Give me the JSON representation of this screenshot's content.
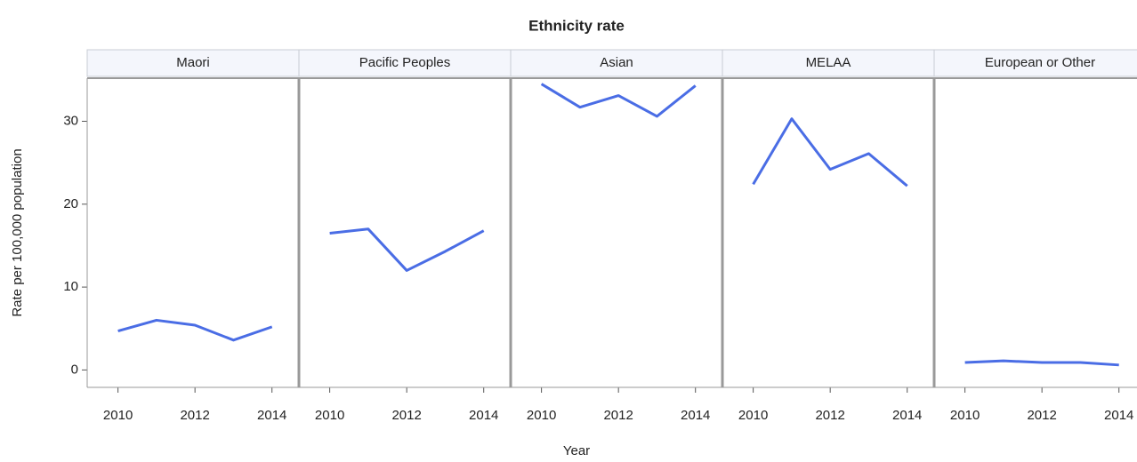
{
  "chart_data": {
    "type": "line",
    "title": "Ethnicity rate",
    "x_label": "Year",
    "y_label": "Rate per 100,000 population",
    "x": [
      2010,
      2011,
      2012,
      2013,
      2014
    ],
    "xlim": [
      2009.2,
      2014.7
    ],
    "xticks": [
      2010,
      2012,
      2014
    ],
    "ylim": [
      -2.1,
      35.2
    ],
    "yticks": [
      0,
      10,
      20,
      30
    ],
    "series": [
      {
        "name": "Maori",
        "color": "#4a6de5",
        "values": [
          4.7,
          6.0,
          5.4,
          3.6,
          5.2
        ]
      },
      {
        "name": "Pacific Peoples",
        "color": "#4a6de5",
        "values": [
          16.5,
          17.0,
          12.0,
          14.3,
          16.8
        ]
      },
      {
        "name": "Asian",
        "color": "#4a6de5",
        "values": [
          34.5,
          31.7,
          33.1,
          30.6,
          34.3
        ]
      },
      {
        "name": "MELAA",
        "color": "#4a6de5",
        "values": [
          22.4,
          30.3,
          24.2,
          26.1,
          22.2
        ]
      },
      {
        "name": "European or Other",
        "color": "#4a6de5",
        "values": [
          0.9,
          1.1,
          0.9,
          0.9,
          0.6
        ]
      }
    ]
  }
}
